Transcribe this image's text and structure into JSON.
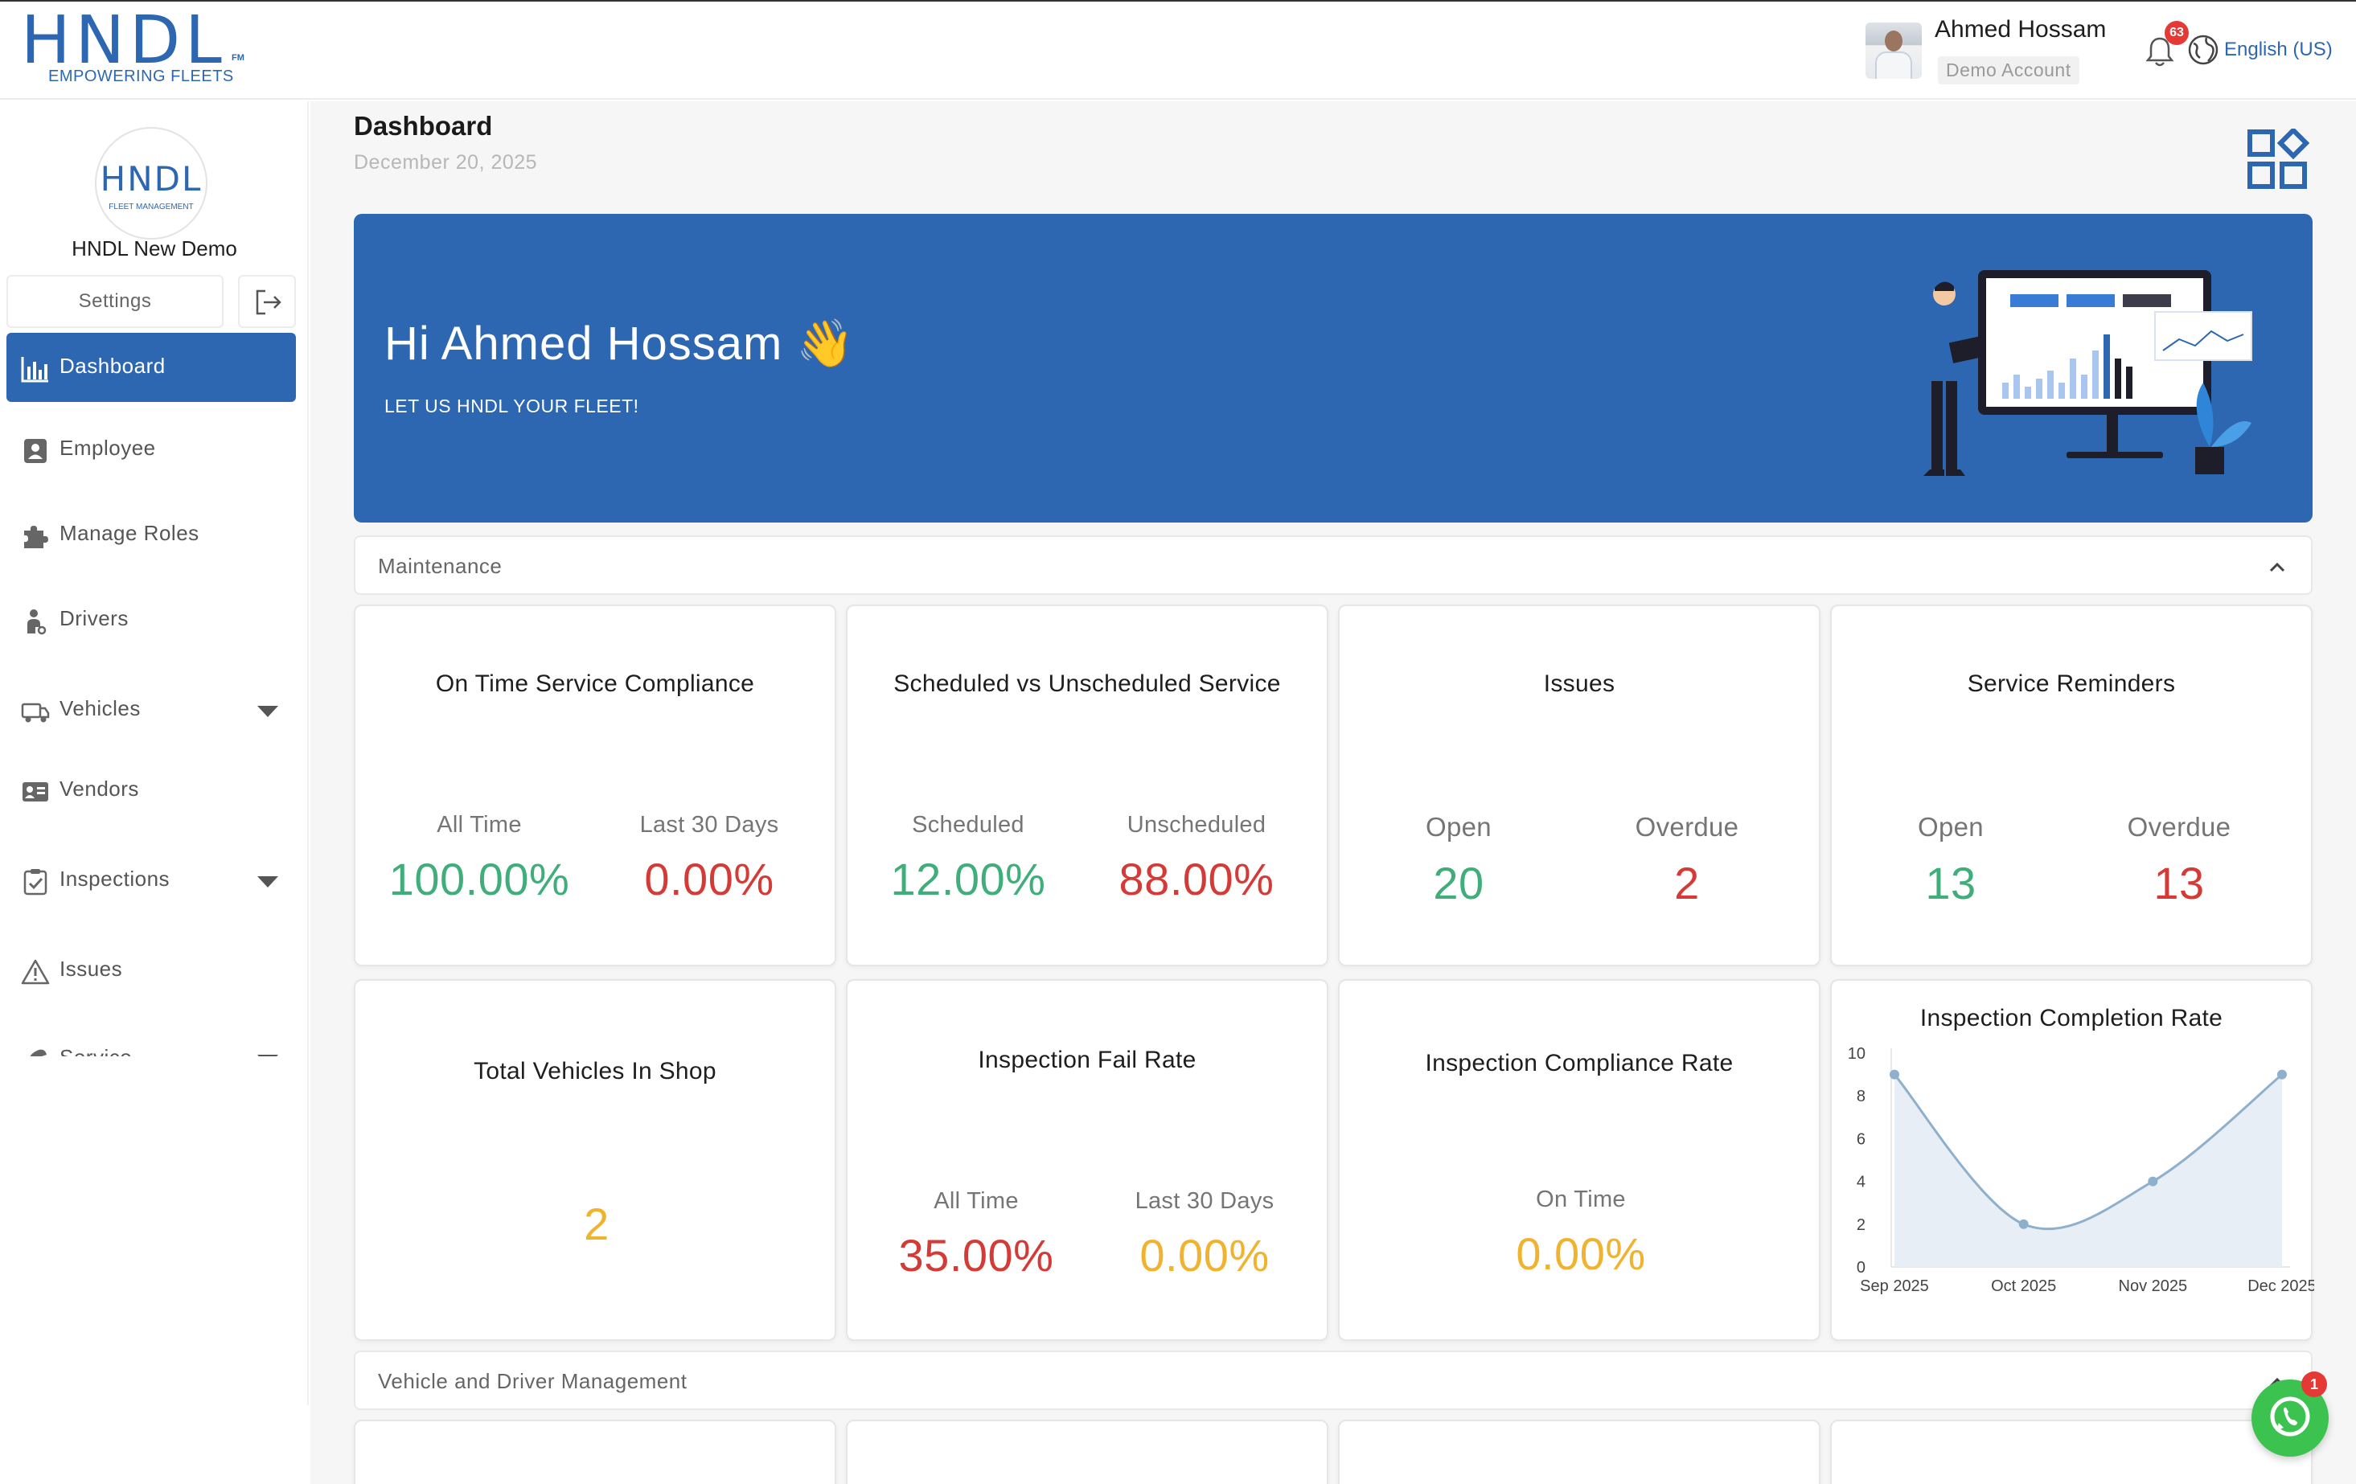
{
  "brand": {
    "logo_text": "HNDL",
    "logo_fm": "FM",
    "tagline": "EMPOWERING FLEETS",
    "color": "#2d67b2"
  },
  "header": {
    "user_name": "Ahmed Hossam",
    "user_role": "Demo Account",
    "notification_count": "63",
    "language": "English (US)"
  },
  "sidebar": {
    "org_logo_text": "HNDL",
    "org_logo_sub": "FLEET MANAGEMENT",
    "org_name": "HNDL New Demo",
    "settings_label": "Settings",
    "items": [
      {
        "label": "Dashboard",
        "icon": "bar-chart-icon",
        "active": true
      },
      {
        "label": "Employee",
        "icon": "contact-icon"
      },
      {
        "label": "Manage Roles",
        "icon": "puzzle-icon"
      },
      {
        "label": "Drivers",
        "icon": "driver-icon"
      },
      {
        "label": "Vehicles",
        "icon": "truck-icon",
        "expandable": true
      },
      {
        "label": "Vendors",
        "icon": "vendor-card-icon"
      },
      {
        "label": "Inspections",
        "icon": "clipboard-check-icon",
        "expandable": true
      },
      {
        "label": "Issues",
        "icon": "warning-icon"
      },
      {
        "label": "Service",
        "icon": "wrench-icon",
        "expandable": true
      }
    ]
  },
  "main": {
    "title": "Dashboard",
    "date": "December 20, 2025",
    "hero": {
      "greeting": "Hi Ahmed Hossam 👋",
      "subtitle": "LET US HNDL YOUR FLEET!"
    },
    "sections": [
      {
        "label": "Maintenance"
      },
      {
        "label": "Vehicle and Driver Management"
      }
    ],
    "cards": {
      "on_time": {
        "title": "On Time Service Compliance",
        "a_label": "All Time",
        "a_value": "100.00%",
        "b_label": "Last 30 Days",
        "b_value": "0.00%"
      },
      "scheduled": {
        "title": "Scheduled vs Unscheduled Service",
        "a_label": "Scheduled",
        "a_value": "12.00%",
        "b_label": "Unscheduled",
        "b_value": "88.00%"
      },
      "issues": {
        "title": "Issues",
        "a_label": "Open",
        "a_value": "20",
        "b_label": "Overdue",
        "b_value": "2"
      },
      "reminders": {
        "title": "Service Reminders",
        "a_label": "Open",
        "a_value": "13",
        "b_label": "Overdue",
        "b_value": "13"
      },
      "in_shop": {
        "title": "Total Vehicles In Shop",
        "value": "2"
      },
      "fail_rate": {
        "title": "Inspection Fail Rate",
        "a_label": "All Time",
        "a_value": "35.00%",
        "b_label": "Last 30 Days",
        "b_value": "0.00%"
      },
      "compliance": {
        "title": "Inspection Compliance Rate",
        "a_label": "On Time",
        "a_value": "0.00%"
      },
      "completion": {
        "title": "Inspection Completion Rate"
      }
    }
  },
  "chart_data": {
    "type": "area",
    "title": "Inspection Completion Rate",
    "categories": [
      "Sep 2025",
      "Oct 2025",
      "Nov 2025",
      "Dec 2025"
    ],
    "values": [
      9,
      2,
      4,
      9
    ],
    "ylim": [
      0,
      10
    ],
    "yticks": [
      "0",
      "2",
      "4",
      "6",
      "8",
      "10"
    ],
    "grid": false,
    "legend": "none",
    "line_color": "#8fb0cc",
    "fill_color": "#e8eef5"
  },
  "whatsapp": {
    "badge": "1",
    "color": "#3cc24f"
  }
}
